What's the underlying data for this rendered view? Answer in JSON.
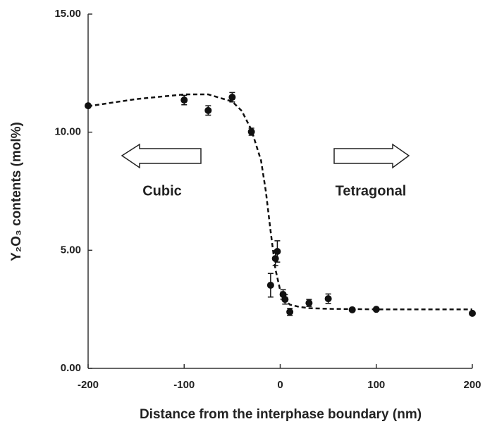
{
  "chart_data": {
    "type": "scatter",
    "xlabel": "Distance from the interphase boundary (nm)",
    "ylabel": "Y₂O₃ contents (mol%)",
    "annotations": [
      "Cubic",
      "Tetragonal"
    ],
    "x": [
      -200,
      -100,
      -75,
      -50,
      -30,
      -10,
      -5,
      -3,
      3,
      5,
      10,
      30,
      50,
      75,
      100,
      200
    ],
    "values": [
      11.12,
      11.36,
      10.92,
      11.48,
      10.02,
      3.52,
      4.65,
      4.95,
      3.13,
      2.92,
      2.39,
      2.77,
      2.95,
      2.48,
      2.5,
      2.33
    ],
    "errors": [
      null,
      0.2,
      0.2,
      0.2,
      0.15,
      0.5,
      0.3,
      0.45,
      0.2,
      0.2,
      0.15,
      0.15,
      0.2,
      null,
      null,
      null
    ],
    "color": "#111111",
    "curve": {
      "x": [
        -200,
        -150,
        -100,
        -75,
        -50,
        -40,
        -30,
        -20,
        -15,
        -10,
        -5,
        0,
        5,
        10,
        20,
        30,
        50,
        100,
        150,
        200
      ],
      "y": [
        11.1,
        11.4,
        11.6,
        11.6,
        11.3,
        10.9,
        10.1,
        8.8,
        7.5,
        5.8,
        4.2,
        3.3,
        2.9,
        2.7,
        2.6,
        2.55,
        2.52,
        2.5,
        2.5,
        2.5
      ]
    },
    "xlim": [
      -200,
      200
    ],
    "xticks": [
      -200,
      -100,
      0,
      100,
      200
    ],
    "ylim": [
      0,
      15
    ],
    "yticks": [
      {
        "value": 0,
        "label": "0.00"
      },
      {
        "value": 5,
        "label": "5.00"
      },
      {
        "value": 10,
        "label": "10.00"
      },
      {
        "value": 15,
        "label": "15.00"
      }
    ]
  }
}
